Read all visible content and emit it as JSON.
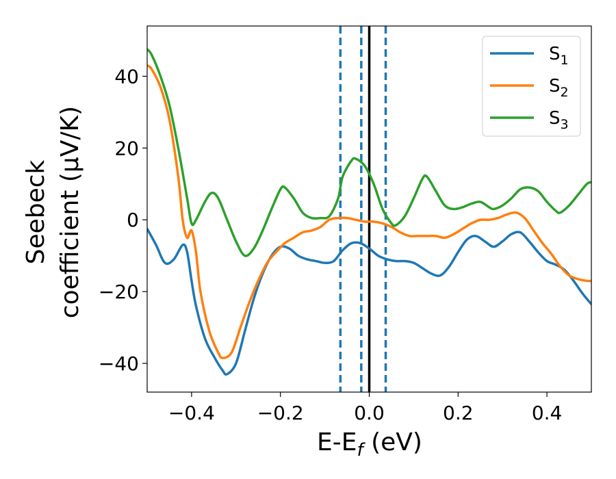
{
  "chart_data": {
    "type": "line",
    "xlabel": "E-E_f (eV)",
    "ylabel_line1": "Seebeck",
    "ylabel_line2": "coefficient  (μV/K)",
    "xlim": [
      -0.5,
      0.5
    ],
    "ylim": [
      -48,
      54
    ],
    "xticks": [
      -0.4,
      -0.2,
      0.0,
      0.2,
      0.4
    ],
    "xtick_labels": [
      "−0.4",
      "−0.2",
      "0.0",
      "0.2",
      "0.4"
    ],
    "yticks": [
      -40,
      -20,
      0,
      20,
      40
    ],
    "ytick_labels": [
      "−40",
      "−20",
      "0",
      "20",
      "40"
    ],
    "grid": false,
    "legend_position": "top-right",
    "vertical_lines": [
      {
        "x": -0.065,
        "style": "dashed",
        "color": "#1f77b4"
      },
      {
        "x": -0.018,
        "style": "dashed",
        "color": "#1f77b4"
      },
      {
        "x": 0.037,
        "style": "dashed",
        "color": "#1f77b4"
      },
      {
        "x": 0.0,
        "style": "solid",
        "color": "#000000"
      }
    ],
    "series": [
      {
        "name": "S",
        "subscript": "1",
        "color": "#1f77b4",
        "points": [
          [
            -0.5,
            -2.5
          ],
          [
            -0.48,
            -7
          ],
          [
            -0.46,
            -12
          ],
          [
            -0.44,
            -11
          ],
          [
            -0.42,
            -7
          ],
          [
            -0.41,
            -9
          ],
          [
            -0.4,
            -17
          ],
          [
            -0.39,
            -24
          ],
          [
            -0.37,
            -33
          ],
          [
            -0.35,
            -38
          ],
          [
            -0.33,
            -42
          ],
          [
            -0.32,
            -43
          ],
          [
            -0.3,
            -40
          ],
          [
            -0.28,
            -31
          ],
          [
            -0.26,
            -22
          ],
          [
            -0.24,
            -15
          ],
          [
            -0.22,
            -10
          ],
          [
            -0.2,
            -7.5
          ],
          [
            -0.18,
            -8
          ],
          [
            -0.16,
            -10
          ],
          [
            -0.14,
            -11
          ],
          [
            -0.12,
            -11.5
          ],
          [
            -0.1,
            -12
          ],
          [
            -0.08,
            -11.5
          ],
          [
            -0.06,
            -8.5
          ],
          [
            -0.04,
            -6.5
          ],
          [
            -0.02,
            -6.5
          ],
          [
            0.0,
            -8
          ],
          [
            0.02,
            -10
          ],
          [
            0.04,
            -11
          ],
          [
            0.06,
            -11.5
          ],
          [
            0.08,
            -11.5
          ],
          [
            0.1,
            -12
          ],
          [
            0.12,
            -13.5
          ],
          [
            0.14,
            -15
          ],
          [
            0.16,
            -15.5
          ],
          [
            0.18,
            -13
          ],
          [
            0.2,
            -9
          ],
          [
            0.22,
            -5.5
          ],
          [
            0.24,
            -4.5
          ],
          [
            0.26,
            -6
          ],
          [
            0.28,
            -7.5
          ],
          [
            0.3,
            -6
          ],
          [
            0.32,
            -4
          ],
          [
            0.34,
            -3.5
          ],
          [
            0.36,
            -6
          ],
          [
            0.38,
            -9
          ],
          [
            0.4,
            -11.5
          ],
          [
            0.42,
            -12.5
          ],
          [
            0.44,
            -14
          ],
          [
            0.46,
            -17
          ],
          [
            0.48,
            -20.5
          ],
          [
            0.5,
            -23.5
          ]
        ]
      },
      {
        "name": "S",
        "subscript": "2",
        "color": "#ff7f0e",
        "points": [
          [
            -0.5,
            43
          ],
          [
            -0.49,
            42
          ],
          [
            -0.47,
            37
          ],
          [
            -0.45,
            28
          ],
          [
            -0.43,
            12
          ],
          [
            -0.42,
            0
          ],
          [
            -0.41,
            -5
          ],
          [
            -0.4,
            -3
          ],
          [
            -0.39,
            -9
          ],
          [
            -0.38,
            -20
          ],
          [
            -0.36,
            -31
          ],
          [
            -0.34,
            -37
          ],
          [
            -0.33,
            -38.5
          ],
          [
            -0.31,
            -37
          ],
          [
            -0.29,
            -30
          ],
          [
            -0.27,
            -23
          ],
          [
            -0.25,
            -17
          ],
          [
            -0.23,
            -12
          ],
          [
            -0.21,
            -9
          ],
          [
            -0.19,
            -6.5
          ],
          [
            -0.17,
            -5
          ],
          [
            -0.15,
            -3.5
          ],
          [
            -0.13,
            -3
          ],
          [
            -0.11,
            -2
          ],
          [
            -0.09,
            0
          ],
          [
            -0.07,
            0.5
          ],
          [
            -0.05,
            0.5
          ],
          [
            -0.03,
            0
          ],
          [
            -0.01,
            -0.5
          ],
          [
            0.01,
            -0.5
          ],
          [
            0.03,
            -1
          ],
          [
            0.05,
            -2
          ],
          [
            0.07,
            -3.5
          ],
          [
            0.09,
            -4.5
          ],
          [
            0.11,
            -4.5
          ],
          [
            0.13,
            -4.5
          ],
          [
            0.15,
            -4.5
          ],
          [
            0.17,
            -5
          ],
          [
            0.19,
            -4
          ],
          [
            0.21,
            -2.5
          ],
          [
            0.23,
            -1
          ],
          [
            0.25,
            0
          ],
          [
            0.27,
            0
          ],
          [
            0.29,
            0.5
          ],
          [
            0.31,
            1.5
          ],
          [
            0.33,
            2
          ],
          [
            0.35,
            0.5
          ],
          [
            0.37,
            -3
          ],
          [
            0.39,
            -6.5
          ],
          [
            0.41,
            -9.5
          ],
          [
            0.43,
            -13
          ],
          [
            0.45,
            -15.5
          ],
          [
            0.47,
            -16.5
          ],
          [
            0.49,
            -17
          ],
          [
            0.5,
            -17
          ]
        ]
      },
      {
        "name": "S",
        "subscript": "3",
        "color": "#2ca02c",
        "points": [
          [
            -0.5,
            47.5
          ],
          [
            -0.49,
            46
          ],
          [
            -0.47,
            40
          ],
          [
            -0.45,
            32
          ],
          [
            -0.43,
            20
          ],
          [
            -0.41,
            6
          ],
          [
            -0.4,
            -1
          ],
          [
            -0.39,
            0
          ],
          [
            -0.37,
            5
          ],
          [
            -0.355,
            7.5
          ],
          [
            -0.34,
            6
          ],
          [
            -0.32,
            0
          ],
          [
            -0.3,
            -6
          ],
          [
            -0.28,
            -10
          ],
          [
            -0.26,
            -8
          ],
          [
            -0.24,
            -3
          ],
          [
            -0.22,
            3
          ],
          [
            -0.2,
            8.5
          ],
          [
            -0.19,
            9
          ],
          [
            -0.17,
            6
          ],
          [
            -0.15,
            2
          ],
          [
            -0.13,
            0.5
          ],
          [
            -0.11,
            0.5
          ],
          [
            -0.09,
            1
          ],
          [
            -0.07,
            6
          ],
          [
            -0.06,
            12
          ],
          [
            -0.04,
            16.5
          ],
          [
            -0.03,
            17
          ],
          [
            -0.01,
            15
          ],
          [
            0.01,
            10
          ],
          [
            0.03,
            3
          ],
          [
            0.05,
            -1
          ],
          [
            0.06,
            -1.5
          ],
          [
            0.08,
            1
          ],
          [
            0.1,
            6
          ],
          [
            0.12,
            11.5
          ],
          [
            0.13,
            12
          ],
          [
            0.15,
            8
          ],
          [
            0.17,
            4
          ],
          [
            0.19,
            3
          ],
          [
            0.21,
            3.5
          ],
          [
            0.23,
            4.5
          ],
          [
            0.25,
            5
          ],
          [
            0.27,
            3.5
          ],
          [
            0.28,
            3
          ],
          [
            0.3,
            4
          ],
          [
            0.32,
            6
          ],
          [
            0.34,
            8.5
          ],
          [
            0.36,
            9
          ],
          [
            0.38,
            8
          ],
          [
            0.4,
            5
          ],
          [
            0.42,
            2.5
          ],
          [
            0.43,
            2
          ],
          [
            0.45,
            4
          ],
          [
            0.47,
            7
          ],
          [
            0.49,
            10
          ],
          [
            0.5,
            10.5
          ]
        ]
      }
    ]
  }
}
